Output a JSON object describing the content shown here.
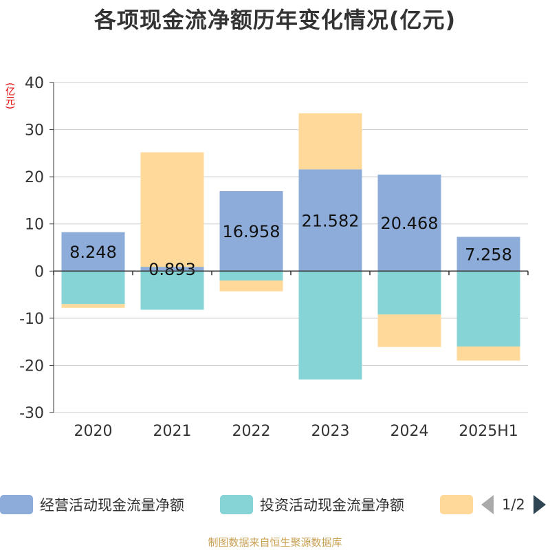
{
  "title": "各项现金流净额历年变化情况(亿元)",
  "unit_label": "(亿元)",
  "source": "制图数据来自恒生聚源数据库",
  "legend": {
    "items": [
      {
        "label": "经营活动现金流量净额",
        "color": "#8eacd9"
      },
      {
        "label": "投资活动现金流量净额",
        "color": "#86d4d6"
      },
      {
        "label": "",
        "color": "#fed99a"
      }
    ],
    "page": "1/2"
  },
  "chart_data": {
    "type": "bar",
    "stacked": true,
    "categories": [
      "2020",
      "2021",
      "2022",
      "2023",
      "2024",
      "2025H1"
    ],
    "ylim": [
      -30,
      40
    ],
    "yticks": [
      40,
      30,
      20,
      10,
      0,
      -10,
      -20,
      -30
    ],
    "grid": true,
    "series": [
      {
        "name": "经营活动现金流量净额",
        "color": "#8eacd9",
        "values": [
          8.248,
          0.893,
          16.958,
          21.582,
          20.468,
          7.258
        ],
        "labels": [
          "8.248",
          "0.893",
          "16.958",
          "21.582",
          "20.468",
          "7.258"
        ]
      },
      {
        "name": "投资活动现金流量净额",
        "color": "#86d4d6",
        "values": [
          -7.0,
          -8.2,
          -2.0,
          -23.0,
          -9.2,
          -16.0
        ]
      },
      {
        "color": "#fed99a",
        "values": [
          -0.8,
          24.3,
          -2.3,
          11.9,
          -6.9,
          -3.0
        ]
      }
    ]
  }
}
